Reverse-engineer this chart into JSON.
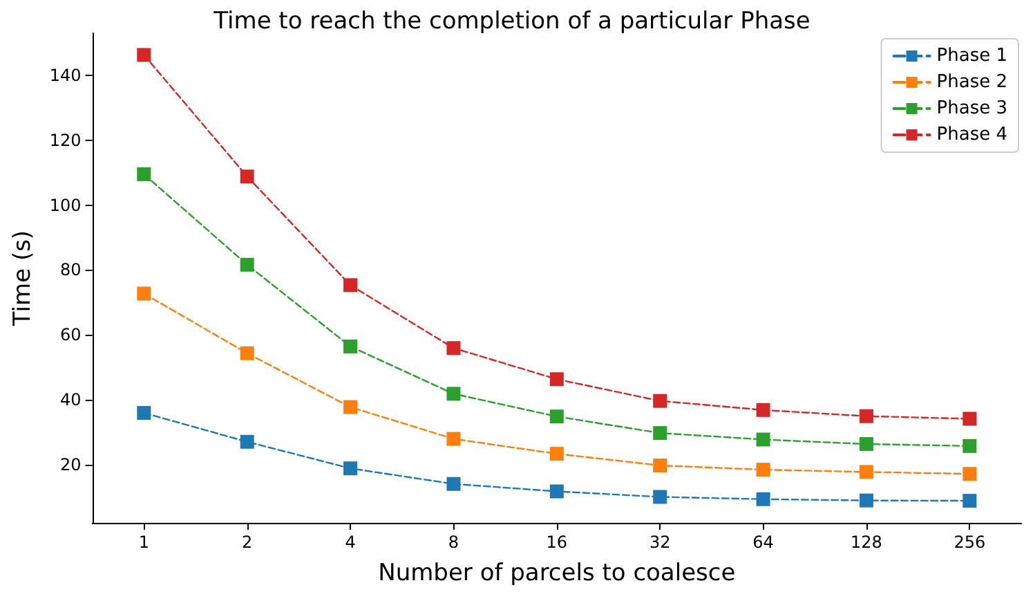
{
  "chart_data": {
    "type": "line",
    "title": "Time to reach the completion of a particular Phase",
    "xlabel": "Number of parcels to coalesce",
    "ylabel": "Time (s)",
    "categories": [
      "1",
      "2",
      "4",
      "8",
      "16",
      "32",
      "64",
      "128",
      "256"
    ],
    "series": [
      {
        "name": "Phase 1",
        "color": "#1f77b4",
        "values": [
          35.9,
          27.0,
          18.8,
          14.0,
          11.7,
          10.0,
          9.3,
          8.9,
          8.8
        ]
      },
      {
        "name": "Phase 2",
        "color": "#ff7f0e",
        "values": [
          72.7,
          54.3,
          37.7,
          27.9,
          23.3,
          19.7,
          18.4,
          17.7,
          17.1
        ]
      },
      {
        "name": "Phase 3",
        "color": "#2ca02c",
        "values": [
          109.5,
          81.6,
          56.4,
          41.8,
          34.8,
          29.7,
          27.7,
          26.3,
          25.7
        ]
      },
      {
        "name": "Phase 4",
        "color": "#d62728",
        "values": [
          146.3,
          108.8,
          75.3,
          55.9,
          46.3,
          39.6,
          36.8,
          34.9,
          34.1
        ]
      }
    ],
    "ylim": [
      2,
      153
    ],
    "yticks": [
      20,
      40,
      60,
      80,
      100,
      120,
      140
    ],
    "grid": false,
    "legend": "top right",
    "marker": "square",
    "line_style": "dashed"
  }
}
